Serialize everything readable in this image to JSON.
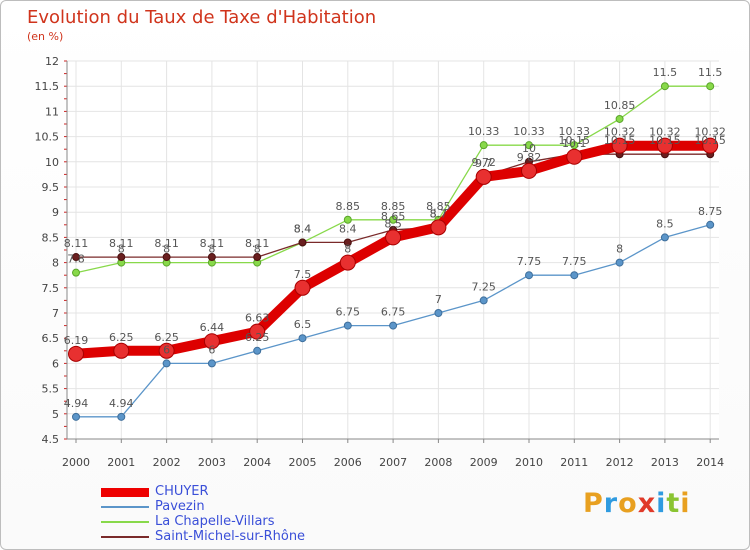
{
  "chart_data": {
    "type": "line",
    "title": "Evolution du Taux de Taxe d'Habitation",
    "subtitle": "(en %)",
    "xlabel": "",
    "ylabel": "",
    "x": [
      "2000",
      "2001",
      "2002",
      "2003",
      "2004",
      "2005",
      "2006",
      "2007",
      "2008",
      "2009",
      "2010",
      "2011",
      "2012",
      "2013",
      "2014"
    ],
    "ylim": [
      4.5,
      12
    ],
    "yticks": [
      4.5,
      5,
      5.5,
      6,
      6.5,
      7,
      7.5,
      8,
      8.5,
      9,
      9.5,
      10,
      10.5,
      11,
      11.5,
      12
    ],
    "grid": true,
    "legend_position": "bottom-left",
    "series": [
      {
        "name": "CHUYER",
        "color": "#ee0000",
        "values": [
          6.19,
          6.25,
          6.25,
          6.44,
          6.63,
          7.5,
          8,
          8.5,
          8.7,
          9.7,
          9.82,
          10.1,
          10.32,
          10.32,
          10.32
        ],
        "labels": [
          "6.19",
          "6.25",
          "6.25",
          "6.44",
          "6.63",
          "7.5",
          "8",
          "8.5",
          "8.7",
          "9.7",
          "9.82",
          "10.1",
          "10.32",
          "10.32",
          "10.32"
        ]
      },
      {
        "name": "Pavezin",
        "color": "#5b95c9",
        "values": [
          4.94,
          4.94,
          6,
          6,
          6.25,
          6.5,
          6.75,
          6.75,
          7,
          7.25,
          7.75,
          7.75,
          8,
          8.5,
          8.75
        ],
        "labels": [
          "4.94",
          "4.94",
          "6",
          "6",
          "6.25",
          "6.5",
          "6.75",
          "6.75",
          "7",
          "7.25",
          "7.75",
          "7.75",
          "8",
          "8.5",
          "8.75"
        ]
      },
      {
        "name": "La Chapelle-Villars",
        "color": "#88d94a",
        "values": [
          7.8,
          8,
          8,
          8,
          8,
          8.4,
          8.85,
          8.85,
          8.85,
          10.33,
          10.33,
          10.33,
          10.85,
          11.5,
          11.5
        ],
        "labels": [
          "7.8",
          "8",
          "8",
          "8",
          "8",
          "8.4",
          "8.85",
          "8.85",
          "8.85",
          "10.33",
          "10.33",
          "10.33",
          "10.85",
          "11.5",
          "11.5"
        ]
      },
      {
        "name": "Saint-Michel-sur-Rhône",
        "color": "#7a2a2a",
        "values": [
          8.11,
          8.11,
          8.11,
          8.11,
          8.11,
          8.4,
          8.4,
          8.65,
          8.7,
          9.72,
          10,
          10.15,
          10.15,
          10.15,
          10.15
        ],
        "labels": [
          "8.11",
          "8.11",
          "8.11",
          "8.11",
          "8.11",
          "8.4",
          "8.4",
          "8.65",
          "8.7",
          "9.72",
          "10",
          "10.15",
          "10.15",
          "10.15",
          "10.15"
        ]
      }
    ]
  },
  "brand": {
    "letters": [
      "P",
      "r",
      "o",
      "x",
      "i",
      "t",
      "i"
    ],
    "colors": [
      "#e8a020",
      "#2f9be0",
      "#e8a020",
      "#e03a2a",
      "#2f9be0",
      "#8ac432",
      "#e8a020"
    ]
  }
}
